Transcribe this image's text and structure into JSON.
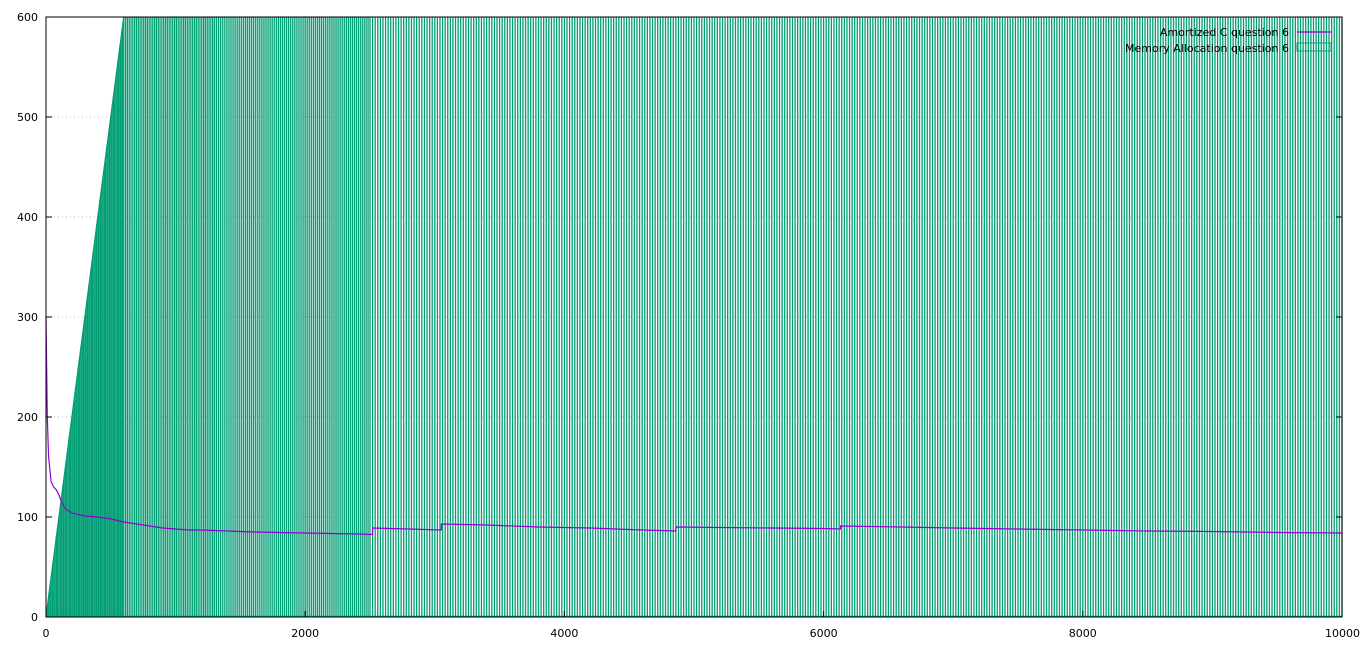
{
  "chart_data": {
    "type": "bar",
    "title": "",
    "xlabel": "",
    "ylabel": "",
    "xlim": [
      0,
      10000
    ],
    "ylim": [
      0,
      600
    ],
    "grid": true,
    "legend_position": "top-right",
    "x_ticks": [
      "0",
      "2000",
      "4000",
      "6000",
      "8000",
      "10000"
    ],
    "y_ticks": [
      "0",
      "100",
      "200",
      "300",
      "400",
      "500",
      "600"
    ],
    "legend": [
      "Amortized C question 6",
      "Memory Allocation question 6"
    ],
    "series": [
      {
        "name": "Memory Allocation question 6",
        "kind": "impulse",
        "color": "#009e73",
        "rise_end_x": 600,
        "rise_end_y": 600,
        "spikes_x": [
          10,
          20,
          30,
          40,
          50,
          60,
          70,
          80,
          90,
          100,
          110,
          120,
          130,
          140,
          150,
          160,
          170,
          180,
          190,
          200,
          210,
          220,
          230,
          240,
          250,
          260,
          270,
          280,
          290,
          300,
          310,
          320,
          330,
          340,
          350,
          360,
          370,
          380,
          390,
          400,
          410,
          420,
          430,
          440,
          450,
          460,
          470,
          480,
          490,
          500,
          510,
          520,
          530,
          540,
          550,
          560,
          570,
          580,
          590,
          600,
          614,
          628,
          642,
          656,
          670,
          684,
          698,
          712,
          726,
          740,
          754,
          768,
          782,
          796,
          810,
          824,
          838,
          852,
          866,
          880,
          894,
          908,
          922,
          936,
          950,
          964,
          978,
          992,
          1006,
          1020,
          1034,
          1048,
          1062,
          1076,
          1090,
          1104,
          1118,
          1132,
          1146,
          1160,
          1174,
          1188,
          1202,
          1216,
          1230,
          1244,
          1258,
          1272,
          1286,
          1300,
          1315,
          1330,
          1345,
          1360,
          1375,
          1390,
          1405,
          1420,
          1435,
          1450,
          1465,
          1480,
          1495,
          1510,
          1525,
          1540,
          1555,
          1570,
          1585,
          1600,
          1615,
          1630,
          1645,
          1660,
          1675,
          1690,
          1705,
          1720,
          1735,
          1750,
          1765,
          1780,
          1795,
          1810,
          1825,
          1840,
          1855,
          1870,
          1885,
          1900,
          1915,
          1930,
          1945,
          1960,
          1975,
          1990,
          2005,
          2020,
          2035,
          2050,
          2065,
          2080,
          2095,
          2110,
          2125,
          2140,
          2155,
          2170,
          2185,
          2200,
          2215,
          2230,
          2245,
          2260,
          2275,
          2290,
          2305,
          2320,
          2335,
          2350,
          2365,
          2380,
          2395,
          2410,
          2425,
          2440,
          2455,
          2470,
          2485,
          2500,
          2520,
          2540,
          2560,
          2580,
          2600,
          2620,
          2640,
          2660,
          2680,
          2700,
          2720,
          2740,
          2760,
          2780,
          2800,
          2820,
          2840,
          2860,
          2880,
          2900,
          2920,
          2940,
          2960,
          2980,
          3000,
          3020,
          3040,
          3060,
          3080,
          3100,
          3120,
          3140,
          3160,
          3180,
          3200,
          3220,
          3240,
          3260,
          3280,
          3300,
          3320,
          3340,
          3360,
          3380,
          3400,
          3420,
          3440,
          3460,
          3480,
          3500,
          3520,
          3540,
          3560,
          3580,
          3600,
          3620,
          3640,
          3660,
          3680,
          3700,
          3720,
          3740,
          3760,
          3780,
          3800,
          3820,
          3840,
          3860,
          3880,
          3900,
          3920,
          3940,
          3960,
          3980,
          4000,
          4020,
          4040,
          4060,
          4080,
          4100,
          4120,
          4140,
          4160,
          4180,
          4200,
          4220,
          4240,
          4260,
          4280,
          4300,
          4320,
          4340,
          4360,
          4380,
          4400,
          4420,
          4440,
          4460,
          4480,
          4500,
          4520,
          4540,
          4560,
          4580,
          4600,
          4620,
          4640,
          4660,
          4680,
          4700,
          4720,
          4740,
          4760,
          4780,
          4800,
          4820,
          4840,
          4860,
          4880,
          4900,
          4920,
          4940,
          4960,
          4980,
          5000,
          5020,
          5040,
          5060,
          5080,
          5100,
          5120,
          5140,
          5160,
          5180,
          5200,
          5220,
          5240,
          5260,
          5280,
          5300,
          5320,
          5340,
          5360,
          5380,
          5400,
          5420,
          5440,
          5460,
          5480,
          5500,
          5520,
          5540,
          5560,
          5580,
          5600,
          5620,
          5640,
          5660,
          5680,
          5700,
          5720,
          5740,
          5760,
          5780,
          5800,
          5820,
          5840,
          5860,
          5880,
          5900,
          5920,
          5940,
          5960,
          5980,
          6000,
          6020,
          6040,
          6060,
          6080,
          6100,
          6120,
          6140,
          6160,
          6180,
          6200,
          6220,
          6240,
          6260,
          6280,
          6300,
          6320,
          6340,
          6360,
          6380,
          6400,
          6420,
          6440,
          6460,
          6480,
          6500,
          6520,
          6540,
          6560,
          6580,
          6600,
          6620,
          6640,
          6660,
          6680,
          6700,
          6720,
          6740,
          6760,
          6780,
          6800,
          6820,
          6840,
          6860,
          6880,
          6900,
          6920,
          6940,
          6960,
          6980,
          7000,
          7020,
          7040,
          7060,
          7080,
          7100,
          7120,
          7140,
          7160,
          7180,
          7200,
          7220,
          7240,
          7260,
          7280,
          7300,
          7320,
          7340,
          7360,
          7380,
          7400,
          7420,
          7440,
          7460,
          7480,
          7500,
          7520,
          7540,
          7560,
          7580,
          7600,
          7620,
          7640,
          7660,
          7680,
          7700,
          7720,
          7740,
          7760,
          7780,
          7800,
          7820,
          7840,
          7860,
          7880,
          7900,
          7920,
          7940,
          7960,
          7980,
          8000,
          8020,
          8040,
          8060,
          8080,
          8100,
          8120,
          8140,
          8160,
          8180,
          8200,
          8220,
          8240,
          8260,
          8280,
          8300,
          8320,
          8340,
          8360,
          8380,
          8400,
          8420,
          8440,
          8460,
          8480,
          8500,
          8520,
          8540,
          8560,
          8580,
          8600,
          8620,
          8640,
          8660,
          8680,
          8700,
          8720,
          8740,
          8760,
          8780,
          8800,
          8820,
          8840,
          8860,
          8880,
          8900,
          8920,
          8940,
          8960,
          8980,
          9000,
          9020,
          9040,
          9060,
          9080,
          9100,
          9120,
          9140,
          9160,
          9180,
          9200,
          9220,
          9240,
          9260,
          9280,
          9300,
          9320,
          9340,
          9360,
          9380,
          9400,
          9420,
          9440,
          9460,
          9480,
          9500,
          9520,
          9540,
          9560,
          9580,
          9600,
          9620,
          9640,
          9660,
          9680,
          9700,
          9720,
          9740,
          9760,
          9780,
          9800,
          9820,
          9840,
          9860,
          9880,
          9900,
          9920,
          9940,
          9960,
          9980,
          10000
        ]
      },
      {
        "name": "Amortized C question 6",
        "kind": "line",
        "color": "#9400d3",
        "x": [
          0,
          5,
          10,
          20,
          40,
          60,
          80,
          100,
          120,
          150,
          200,
          300,
          400,
          500,
          600,
          700,
          800,
          900,
          1000,
          1100,
          1200,
          1400,
          1600,
          1800,
          2000,
          2200,
          2400,
          2519,
          2520,
          2800,
          3050,
          3051,
          3400,
          3800,
          4200,
          4600,
          4860,
          4861,
          5200,
          5600,
          6000,
          6130,
          6131,
          6600,
          7000,
          7500,
          8000,
          8500,
          9000,
          9500,
          10000
        ],
        "y": [
          300,
          250,
          200,
          160,
          135,
          130,
          127,
          122,
          115,
          108,
          104,
          101,
          100,
          98,
          95,
          93,
          91,
          89,
          88,
          87,
          87,
          86,
          85,
          84.5,
          84,
          83.5,
          83,
          82.5,
          89,
          88,
          87,
          93,
          92,
          90,
          89,
          87,
          86,
          90,
          89.5,
          89,
          88.5,
          88,
          91,
          90,
          89,
          88,
          87,
          86,
          85.5,
          84.5,
          84
        ]
      }
    ]
  }
}
